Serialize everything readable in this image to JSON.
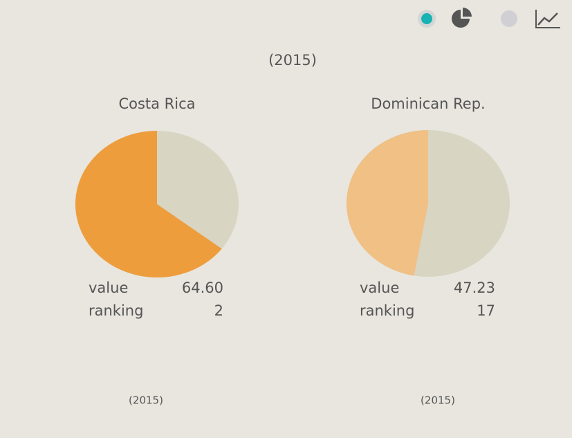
{
  "header": {
    "period": "(2015)"
  },
  "chart_data": [
    {
      "type": "pie",
      "title": "Costa Rica",
      "values": [
        64.6
      ],
      "value_labels": [
        "64.60"
      ],
      "vlim": [
        0,
        100
      ],
      "color": "#ee9d3c",
      "rest_color": "#d8d5c3",
      "stats": {
        "value_name": "value",
        "ranking_name": "ranking",
        "ranking": 2
      },
      "footnote": "(2015)"
    },
    {
      "type": "pie",
      "title": "Dominican Rep.",
      "values": [
        47.23
      ],
      "value_labels": [
        "47.23"
      ],
      "vlim": [
        0,
        100
      ],
      "color": "#f0c084",
      "rest_color": "#d8d5c3",
      "stats": {
        "value_name": "value",
        "ranking_name": "ranking",
        "ranking": 17
      },
      "footnote": "(2015)"
    }
  ]
}
